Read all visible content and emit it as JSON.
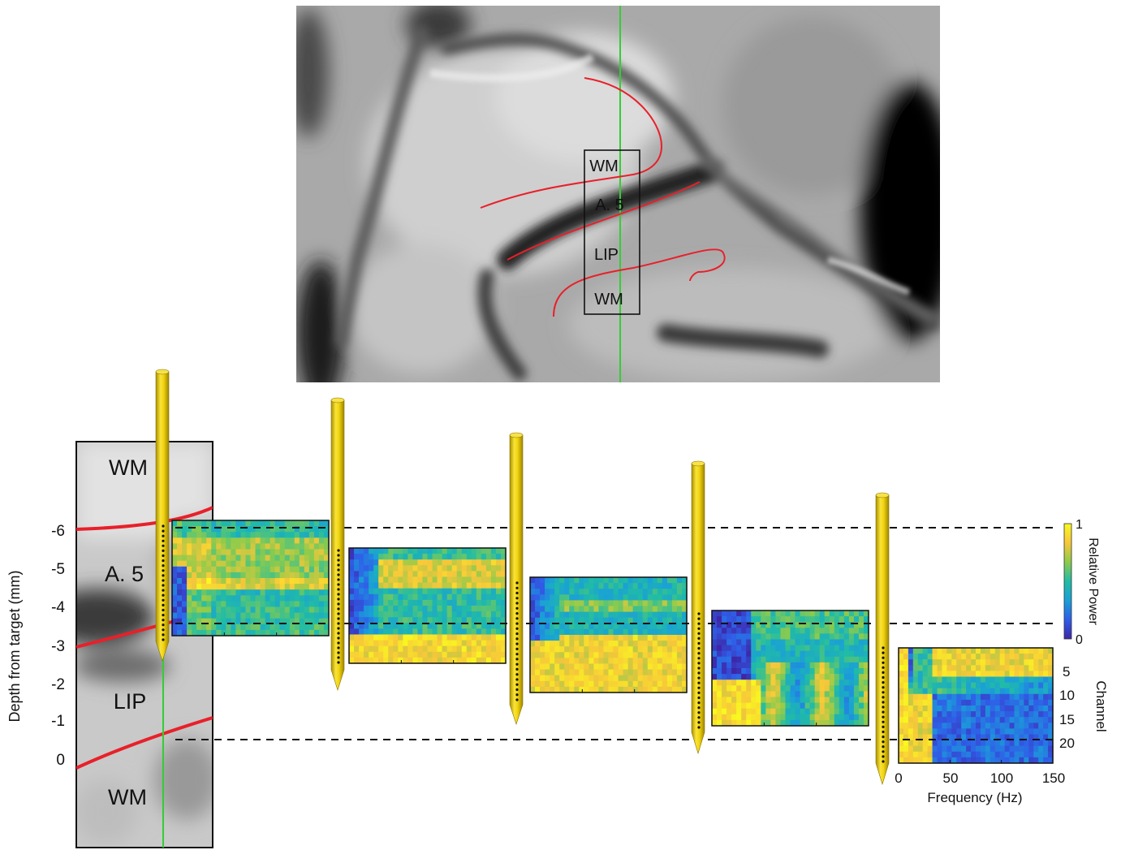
{
  "mri_panel": {
    "region_labels": [
      "WM",
      "A. 5",
      "LIP",
      "WM"
    ]
  },
  "depth_panel": {
    "region_labels": [
      "WM",
      "A. 5",
      "LIP",
      "WM"
    ],
    "ylabel": "Depth from target (mm)",
    "yticks": [
      "-6",
      "-5",
      "-4",
      "-3",
      "-2",
      "-1",
      "0"
    ]
  },
  "spectrograms": {
    "count": 5,
    "xlabel": "Frequency (Hz)",
    "xticks": [
      "0",
      "50",
      "100",
      "150"
    ],
    "channel_label": "Channel",
    "channel_ticks": [
      "5",
      "10",
      "15",
      "20"
    ]
  },
  "colorbar": {
    "label": "Relative Power",
    "max_label": "1",
    "min_label": "0",
    "colors": [
      "#3e26a8",
      "#2f5fe8",
      "#1a9fd8",
      "#21bca5",
      "#8fcb4b",
      "#f7c73a",
      "#f9f820"
    ]
  },
  "colors": {
    "boundary_line": "#e8202a",
    "track_line": "#36cc36",
    "electrode": "#f2d40f",
    "electrode_dark": "#a88f00"
  }
}
